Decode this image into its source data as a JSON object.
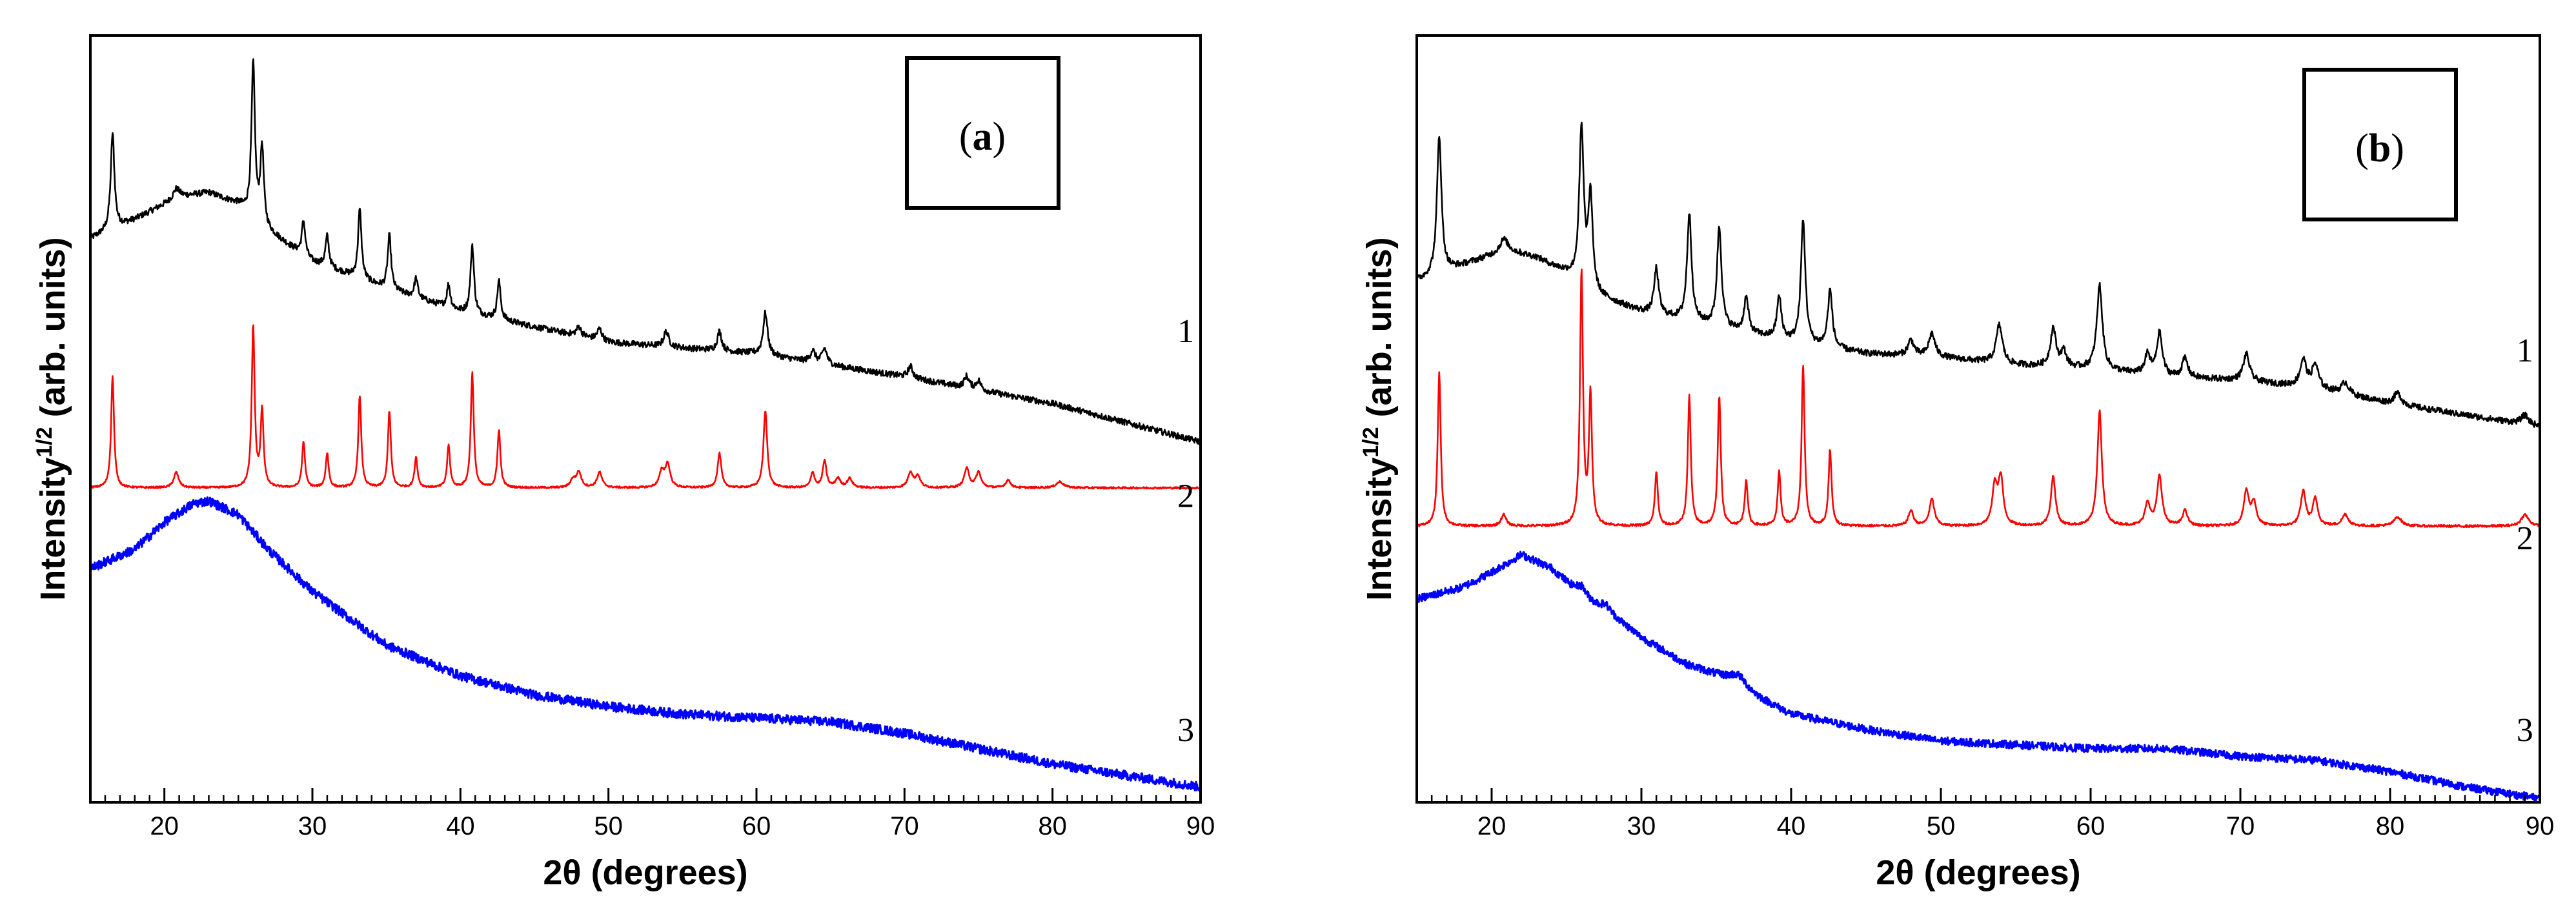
{
  "colors": {
    "series1": "#000000",
    "series2": "#ff0000",
    "series3": "#0000ff"
  },
  "chart_data": [
    {
      "type": "line",
      "panel_label": "(a)",
      "panel_label_parts": {
        "open": "(",
        "letter": "a",
        "close": ")"
      },
      "xlabel": "2θ (degrees)",
      "ylabel": {
        "main": "Intensity",
        "sup": "1/2",
        "unit": " (arb. units)"
      },
      "xlim": [
        15,
        90
      ],
      "ylim": [
        0,
        1
      ],
      "xticks": [
        20,
        30,
        40,
        50,
        60,
        70,
        80,
        90
      ],
      "series": [
        {
          "name": "1",
          "color": "#000000",
          "noise": 0.004,
          "baseline": [
            [
              15,
              0.735
            ],
            [
              18,
              0.76
            ],
            [
              21,
              0.79
            ],
            [
              23,
              0.795
            ],
            [
              25,
              0.78
            ],
            [
              27,
              0.745
            ],
            [
              30,
              0.705
            ],
            [
              35,
              0.67
            ],
            [
              40,
              0.64
            ],
            [
              50,
              0.6
            ],
            [
              60,
              0.585
            ],
            [
              70,
              0.555
            ],
            [
              80,
              0.52
            ],
            [
              90,
              0.47
            ]
          ],
          "peaks": [
            [
              16.5,
              0.125,
              0.15
            ],
            [
              20.8,
              0.012,
              0.25
            ],
            [
              26.0,
              0.2,
              0.14
            ],
            [
              26.6,
              0.1,
              0.14
            ],
            [
              29.4,
              0.045,
              0.14
            ],
            [
              31.0,
              0.04,
              0.14
            ],
            [
              33.2,
              0.09,
              0.14
            ],
            [
              35.2,
              0.07,
              0.14
            ],
            [
              37.0,
              0.025,
              0.14
            ],
            [
              39.2,
              0.03,
              0.14
            ],
            [
              40.8,
              0.09,
              0.14
            ],
            [
              42.6,
              0.05,
              0.14
            ],
            [
              48.0,
              0.012,
              0.2
            ],
            [
              49.4,
              0.015,
              0.2
            ],
            [
              53.9,
              0.02,
              0.2
            ],
            [
              57.5,
              0.025,
              0.18
            ],
            [
              60.6,
              0.055,
              0.18
            ],
            [
              63.8,
              0.015,
              0.2
            ],
            [
              64.6,
              0.02,
              0.2
            ],
            [
              70.4,
              0.015,
              0.2
            ],
            [
              74.2,
              0.015,
              0.2
            ],
            [
              75.0,
              0.012,
              0.2
            ]
          ]
        },
        {
          "name": "2",
          "color": "#ff0000",
          "noise": 0.0012,
          "baseline": [
            [
              15,
              0.41
            ],
            [
              90,
              0.41
            ]
          ],
          "peaks": [
            [
              16.5,
              0.145,
              0.12
            ],
            [
              20.8,
              0.02,
              0.2
            ],
            [
              26.0,
              0.21,
              0.12
            ],
            [
              26.6,
              0.1,
              0.12
            ],
            [
              29.4,
              0.06,
              0.12
            ],
            [
              31.0,
              0.045,
              0.12
            ],
            [
              33.2,
              0.12,
              0.12
            ],
            [
              35.2,
              0.1,
              0.12
            ],
            [
              37.0,
              0.04,
              0.12
            ],
            [
              39.2,
              0.055,
              0.12
            ],
            [
              40.8,
              0.15,
              0.12
            ],
            [
              42.6,
              0.075,
              0.12
            ],
            [
              47.6,
              0.01,
              0.2
            ],
            [
              48.0,
              0.02,
              0.2
            ],
            [
              49.4,
              0.02,
              0.2
            ],
            [
              53.6,
              0.02,
              0.2
            ],
            [
              54.0,
              0.03,
              0.2
            ],
            [
              57.5,
              0.045,
              0.15
            ],
            [
              60.6,
              0.1,
              0.15
            ],
            [
              63.8,
              0.02,
              0.15
            ],
            [
              64.6,
              0.035,
              0.15
            ],
            [
              65.5,
              0.012,
              0.2
            ],
            [
              66.3,
              0.012,
              0.2
            ],
            [
              70.4,
              0.02,
              0.2
            ],
            [
              70.9,
              0.015,
              0.2
            ],
            [
              74.2,
              0.025,
              0.2
            ],
            [
              75.0,
              0.02,
              0.2
            ],
            [
              77.0,
              0.01,
              0.2
            ],
            [
              80.5,
              0.008,
              0.3
            ]
          ]
        },
        {
          "name": "3",
          "color": "#0000ff",
          "noise": 0.006,
          "baseline": [
            [
              15,
              0.305
            ],
            [
              18,
              0.33
            ],
            [
              20,
              0.365
            ],
            [
              22,
              0.39
            ],
            [
              23,
              0.393
            ],
            [
              25,
              0.375
            ],
            [
              27,
              0.33
            ],
            [
              30,
              0.275
            ],
            [
              35,
              0.205
            ],
            [
              40,
              0.165
            ],
            [
              45,
              0.14
            ],
            [
              50,
              0.125
            ],
            [
              55,
              0.115
            ],
            [
              60,
              0.11
            ],
            [
              65,
              0.105
            ],
            [
              70,
              0.09
            ],
            [
              75,
              0.07
            ],
            [
              80,
              0.05
            ],
            [
              85,
              0.035
            ],
            [
              90,
              0.02
            ]
          ],
          "peaks": []
        }
      ],
      "curve_labels": [
        {
          "text": "1",
          "x": 89,
          "y": 0.6
        },
        {
          "text": "2",
          "x": 89,
          "y": 0.385
        },
        {
          "text": "3",
          "x": 89,
          "y": 0.08
        }
      ]
    },
    {
      "type": "line",
      "panel_label": "(b)",
      "panel_label_parts": {
        "open": "(",
        "letter": "b",
        "close": ")"
      },
      "xlabel": "2θ (degrees)",
      "ylabel": {
        "main": "Intensity",
        "sup": "1/2",
        "unit": " (arb. units)"
      },
      "xlim": [
        15,
        90
      ],
      "ylim": [
        0,
        1
      ],
      "xticks": [
        20,
        30,
        40,
        50,
        60,
        70,
        80,
        90
      ],
      "series": [
        {
          "name": "1",
          "color": "#000000",
          "noise": 0.004,
          "baseline": [
            [
              15,
              0.68
            ],
            [
              18,
              0.7
            ],
            [
              21,
              0.72
            ],
            [
              23,
              0.71
            ],
            [
              25,
              0.69
            ],
            [
              27,
              0.66
            ],
            [
              30,
              0.64
            ],
            [
              35,
              0.62
            ],
            [
              40,
              0.6
            ],
            [
              45,
              0.585
            ],
            [
              50,
              0.58
            ],
            [
              55,
              0.57
            ],
            [
              60,
              0.565
            ],
            [
              65,
              0.555
            ],
            [
              70,
              0.55
            ],
            [
              75,
              0.54
            ],
            [
              80,
              0.52
            ],
            [
              85,
              0.505
            ],
            [
              90,
              0.49
            ]
          ],
          "peaks": [
            [
              16.5,
              0.18,
              0.18
            ],
            [
              20.8,
              0.015,
              0.3
            ],
            [
              26.0,
              0.2,
              0.18
            ],
            [
              26.6,
              0.12,
              0.18
            ],
            [
              31.0,
              0.06,
              0.18
            ],
            [
              33.2,
              0.14,
              0.18
            ],
            [
              35.2,
              0.13,
              0.18
            ],
            [
              37.0,
              0.045,
              0.18
            ],
            [
              39.2,
              0.055,
              0.18
            ],
            [
              40.8,
              0.16,
              0.18
            ],
            [
              42.6,
              0.075,
              0.18
            ],
            [
              48.0,
              0.02,
              0.25
            ],
            [
              49.4,
              0.03,
              0.25
            ],
            [
              53.9,
              0.05,
              0.25
            ],
            [
              57.5,
              0.05,
              0.22
            ],
            [
              58.2,
              0.02,
              0.22
            ],
            [
              60.6,
              0.11,
              0.22
            ],
            [
              63.8,
              0.025,
              0.22
            ],
            [
              64.6,
              0.055,
              0.22
            ],
            [
              66.3,
              0.025,
              0.22
            ],
            [
              70.4,
              0.035,
              0.25
            ],
            [
              74.2,
              0.035,
              0.25
            ],
            [
              75.0,
              0.03,
              0.25
            ],
            [
              77.0,
              0.015,
              0.3
            ],
            [
              80.5,
              0.015,
              0.3
            ],
            [
              89.0,
              0.012,
              0.3
            ]
          ]
        },
        {
          "name": "2",
          "color": "#ff0000",
          "noise": 0.0015,
          "baseline": [
            [
              15,
              0.36
            ],
            [
              90,
              0.36
            ]
          ],
          "peaks": [
            [
              16.5,
              0.2,
              0.12
            ],
            [
              20.8,
              0.015,
              0.2
            ],
            [
              26.0,
              0.33,
              0.12
            ],
            [
              26.6,
              0.17,
              0.12
            ],
            [
              31.0,
              0.07,
              0.12
            ],
            [
              33.2,
              0.17,
              0.12
            ],
            [
              35.2,
              0.17,
              0.12
            ],
            [
              37.0,
              0.06,
              0.12
            ],
            [
              39.2,
              0.07,
              0.12
            ],
            [
              40.8,
              0.21,
              0.12
            ],
            [
              42.6,
              0.1,
              0.12
            ],
            [
              48.0,
              0.02,
              0.2
            ],
            [
              49.4,
              0.035,
              0.2
            ],
            [
              53.6,
              0.05,
              0.2
            ],
            [
              54.0,
              0.06,
              0.2
            ],
            [
              57.5,
              0.065,
              0.18
            ],
            [
              60.6,
              0.15,
              0.18
            ],
            [
              63.8,
              0.03,
              0.2
            ],
            [
              64.6,
              0.065,
              0.2
            ],
            [
              66.3,
              0.02,
              0.2
            ],
            [
              70.4,
              0.045,
              0.2
            ],
            [
              70.9,
              0.03,
              0.2
            ],
            [
              74.2,
              0.045,
              0.2
            ],
            [
              75.0,
              0.035,
              0.2
            ],
            [
              77.0,
              0.015,
              0.25
            ],
            [
              80.5,
              0.012,
              0.3
            ],
            [
              89.0,
              0.015,
              0.3
            ]
          ]
        },
        {
          "name": "3",
          "color": "#0000ff",
          "noise": 0.005,
          "baseline": [
            [
              15,
              0.265
            ],
            [
              18,
              0.28
            ],
            [
              20,
              0.3
            ],
            [
              22,
              0.323
            ],
            [
              24,
              0.305
            ],
            [
              26,
              0.27
            ],
            [
              28,
              0.245
            ],
            [
              30,
              0.215
            ],
            [
              33,
              0.18
            ],
            [
              36,
              0.16
            ],
            [
              38,
              0.135
            ],
            [
              40,
              0.115
            ],
            [
              45,
              0.095
            ],
            [
              50,
              0.08
            ],
            [
              55,
              0.075
            ],
            [
              60,
              0.07
            ],
            [
              65,
              0.07
            ],
            [
              70,
              0.06
            ],
            [
              75,
              0.055
            ],
            [
              80,
              0.04
            ],
            [
              85,
              0.02
            ],
            [
              90,
              0.005
            ]
          ],
          "peaks": [
            [
              26.0,
              0.012,
              0.35
            ],
            [
              27.6,
              0.008,
              0.35
            ],
            [
              36.5,
              0.012,
              0.6
            ]
          ]
        }
      ],
      "curve_labels": [
        {
          "text": "1",
          "x": 89,
          "y": 0.575
        },
        {
          "text": "2",
          "x": 89,
          "y": 0.33
        },
        {
          "text": "3",
          "x": 89,
          "y": 0.08
        }
      ]
    }
  ]
}
